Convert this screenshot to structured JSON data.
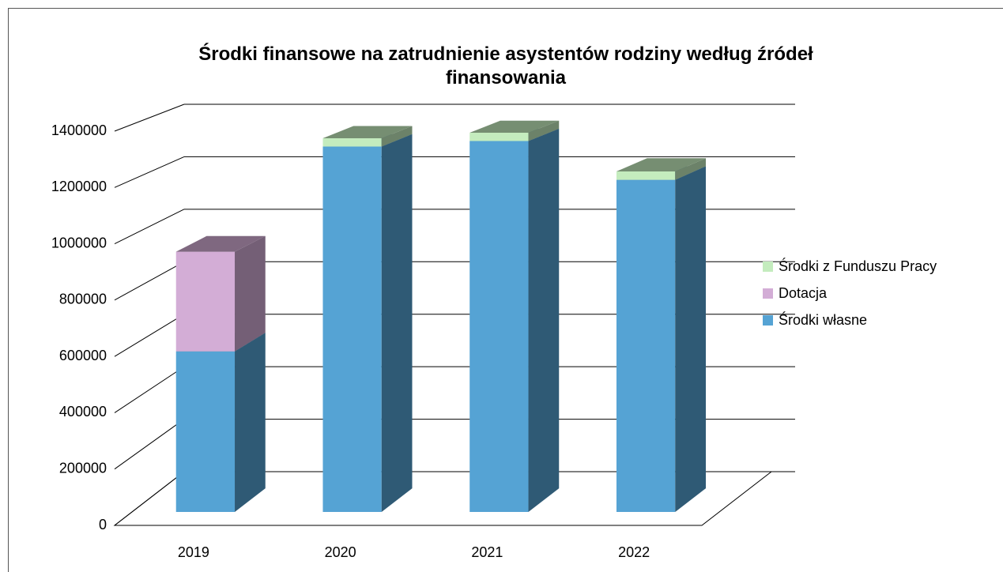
{
  "chart_data": {
    "type": "bar3d_stacked",
    "title": "Środki finansowe na zatrudnienie asystentów rodziny według źródeł finansowania",
    "categories": [
      "2019",
      "2020",
      "2021",
      "2022"
    ],
    "series": [
      {
        "name": "Środki własne",
        "color": "#55a3d4",
        "values": [
          580000,
          1320000,
          1340000,
          1200000
        ]
      },
      {
        "name": "Dotacja",
        "color": "#d3add6",
        "values": [
          360000,
          0,
          0,
          0
        ]
      },
      {
        "name": "Środki z Funduszu Pracy",
        "color": "#c4ecbe",
        "values": [
          0,
          30000,
          30000,
          30000
        ]
      }
    ],
    "ylim": [
      0,
      1400000
    ],
    "yticks": [
      0,
      200000,
      400000,
      600000,
      800000,
      1000000,
      1200000,
      1400000
    ],
    "grid": true,
    "legend": "right"
  }
}
